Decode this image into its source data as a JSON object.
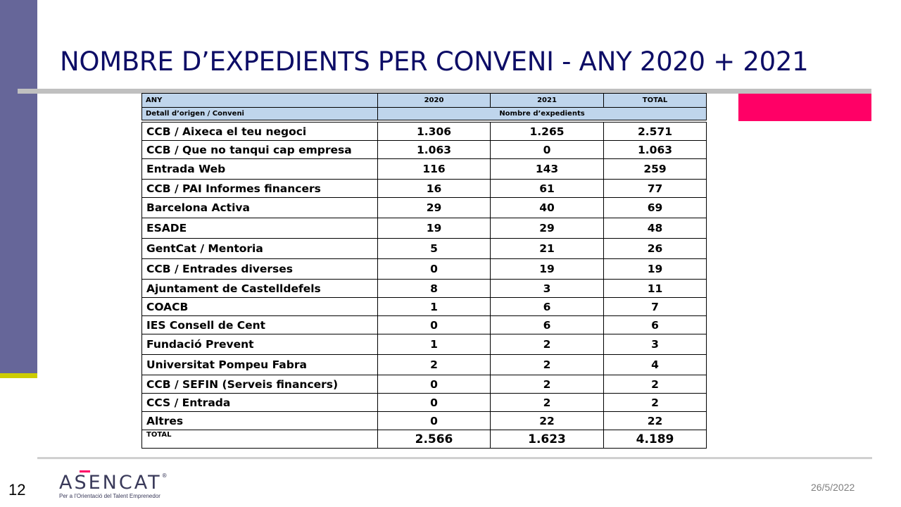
{
  "slide": {
    "title": "NOMBRE D’EXPEDIENTS PER CONVENI - ANY 2020 + 2021",
    "page_number": "12",
    "date": "26/5/2022",
    "logo": {
      "name": "ASENCAT",
      "registered": "®",
      "tagline": "Per a l’Orientació del Talent Emprenedor"
    }
  },
  "colors": {
    "sidebar": "#666699",
    "sidebar_accent": "#cccc00",
    "title": "#0d0d66",
    "pink_block": "#ff0066",
    "header_fill": "#bfd5ec"
  },
  "table": {
    "header1": {
      "c0": "ANY",
      "c1": "2020",
      "c2": "2021",
      "c3": "TOTAL"
    },
    "header2": {
      "c0": "Detall d’origen  / Conveni",
      "span": "Nombre d’expedients"
    },
    "rows": [
      {
        "name": "CCB / Aixeca el teu negoci",
        "y2020": "1.306",
        "y2021": "1.265",
        "total": "2.571"
      },
      {
        "name": "CCB / Que no tanqui cap empresa",
        "y2020": "1.063",
        "y2021": "0",
        "total": "1.063"
      },
      {
        "name": "Entrada Web",
        "y2020": "116",
        "y2021": "143",
        "total": "259"
      },
      {
        "name": "CCB / PAI Informes financers",
        "y2020": "16",
        "y2021": "61",
        "total": "77"
      },
      {
        "name": "Barcelona Activa",
        "y2020": "29",
        "y2021": "40",
        "total": "69"
      },
      {
        "name": "ESADE",
        "y2020": "19",
        "y2021": "29",
        "total": "48"
      },
      {
        "name": "GentCat / Mentoria",
        "y2020": "5",
        "y2021": "21",
        "total": "26"
      },
      {
        "name": "CCB / Entrades  diverses",
        "y2020": "0",
        "y2021": "19",
        "total": "19"
      },
      {
        "name": "Ajuntament de Castelldefels",
        "y2020": "8",
        "y2021": "3",
        "total": "11"
      },
      {
        "name": "COACB",
        "y2020": "1",
        "y2021": "6",
        "total": "7"
      },
      {
        "name": "IES Consell de Cent",
        "y2020": "0",
        "y2021": "6",
        "total": "6"
      },
      {
        "name": "Fundació Prevent",
        "y2020": "1",
        "y2021": "2",
        "total": "3"
      },
      {
        "name": "Universitat Pompeu Fabra",
        "y2020": "2",
        "y2021": "2",
        "total": "4"
      },
      {
        "name": "CCB / SEFIN (Serveis financers)",
        "y2020": "0",
        "y2021": "2",
        "total": "2"
      },
      {
        "name": "CCS / Entrada",
        "y2020": "0",
        "y2021": "2",
        "total": "2"
      },
      {
        "name": "Altres",
        "y2020": "0",
        "y2021": "22",
        "total": "22"
      }
    ],
    "total": {
      "label": "TOTAL",
      "y2020": "2.566",
      "y2021": "1.623",
      "total": "4.189"
    }
  }
}
